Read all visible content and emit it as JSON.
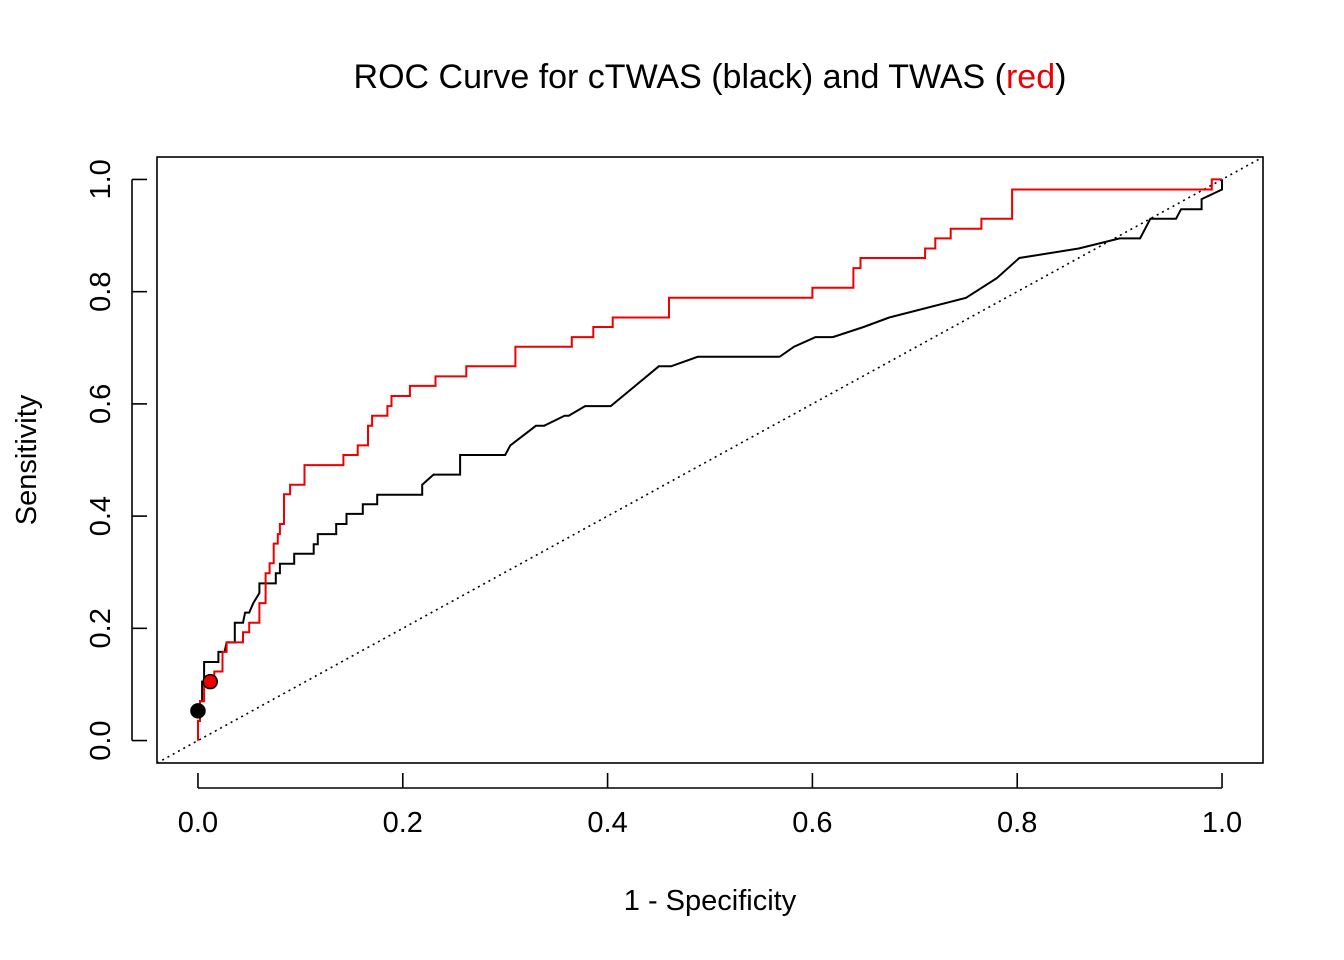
{
  "chart_data": {
    "type": "line",
    "title": {
      "prefix": "ROC Curve for cTWAS (black) and TWAS (",
      "highlight": "red",
      "suffix": ")",
      "highlight_color": "#ee0000"
    },
    "xlabel": "1 - Specificity",
    "ylabel": "Sensitivity",
    "xlim": [
      -0.04,
      1.04
    ],
    "ylim": [
      -0.04,
      1.04
    ],
    "xticks": [
      "0.0",
      "0.2",
      "0.4",
      "0.6",
      "0.8",
      "1.0"
    ],
    "yticks": [
      "0.0",
      "0.2",
      "0.4",
      "0.6",
      "0.8",
      "1.0"
    ],
    "reference_line": {
      "style": "dotted",
      "from": [
        0,
        0
      ],
      "to": [
        1,
        1
      ]
    },
    "grid": false,
    "series": [
      {
        "color": "#000000",
        "x": [
          0.0,
          0.0,
          0.002,
          0.002,
          0.004,
          0.004,
          0.006,
          0.006,
          0.02,
          0.02,
          0.026,
          0.028,
          0.036,
          0.036,
          0.044,
          0.046,
          0.05,
          0.054,
          0.06,
          0.06,
          0.076,
          0.076,
          0.08,
          0.08,
          0.094,
          0.094,
          0.113,
          0.113,
          0.117,
          0.117,
          0.135,
          0.135,
          0.145,
          0.145,
          0.161,
          0.161,
          0.175,
          0.175,
          0.193,
          0.2,
          0.219,
          0.219,
          0.23,
          0.25,
          0.256,
          0.256,
          0.272,
          0.3,
          0.305,
          0.33,
          0.338,
          0.358,
          0.362,
          0.378,
          0.386,
          0.403,
          0.427,
          0.45,
          0.462,
          0.488,
          0.546,
          0.568,
          0.582,
          0.603,
          0.62,
          0.65,
          0.675,
          0.75,
          0.78,
          0.802,
          0.86,
          0.9,
          0.92,
          0.93,
          0.955,
          0.96,
          0.98,
          0.98,
          1.0,
          1.0
        ],
        "y": [
          0.0,
          0.035,
          0.035,
          0.07,
          0.07,
          0.105,
          0.105,
          0.14,
          0.14,
          0.158,
          0.158,
          0.175,
          0.175,
          0.21,
          0.21,
          0.228,
          0.228,
          0.245,
          0.263,
          0.28,
          0.28,
          0.298,
          0.298,
          0.315,
          0.315,
          0.333,
          0.333,
          0.35,
          0.35,
          0.368,
          0.368,
          0.386,
          0.386,
          0.404,
          0.404,
          0.421,
          0.421,
          0.438,
          0.438,
          0.438,
          0.438,
          0.456,
          0.474,
          0.474,
          0.474,
          0.509,
          0.509,
          0.509,
          0.526,
          0.561,
          0.561,
          0.579,
          0.579,
          0.596,
          0.596,
          0.596,
          0.632,
          0.667,
          0.667,
          0.684,
          0.684,
          0.684,
          0.702,
          0.719,
          0.719,
          0.737,
          0.754,
          0.789,
          0.824,
          0.86,
          0.877,
          0.895,
          0.895,
          0.93,
          0.93,
          0.947,
          0.947,
          0.965,
          0.982,
          1.0
        ]
      },
      {
        "color": "#ee0000",
        "x": [
          0.0,
          0.0,
          0.002,
          0.002,
          0.006,
          0.006,
          0.016,
          0.016,
          0.024,
          0.024,
          0.028,
          0.028,
          0.044,
          0.044,
          0.05,
          0.05,
          0.06,
          0.06,
          0.066,
          0.066,
          0.07,
          0.07,
          0.074,
          0.074,
          0.078,
          0.078,
          0.08,
          0.08,
          0.084,
          0.084,
          0.09,
          0.09,
          0.104,
          0.104,
          0.142,
          0.142,
          0.156,
          0.156,
          0.166,
          0.166,
          0.17,
          0.17,
          0.185,
          0.185,
          0.189,
          0.189,
          0.207,
          0.207,
          0.232,
          0.232,
          0.262,
          0.262,
          0.31,
          0.31,
          0.365,
          0.365,
          0.386,
          0.386,
          0.405,
          0.405,
          0.46,
          0.46,
          0.6,
          0.6,
          0.64,
          0.64,
          0.647,
          0.647,
          0.71,
          0.71,
          0.72,
          0.72,
          0.735,
          0.735,
          0.765,
          0.765,
          0.795,
          0.795,
          0.99,
          0.99,
          1.0,
          1.0
        ],
        "y": [
          0.0,
          0.035,
          0.035,
          0.07,
          0.07,
          0.105,
          0.105,
          0.123,
          0.123,
          0.158,
          0.158,
          0.175,
          0.175,
          0.193,
          0.193,
          0.21,
          0.21,
          0.245,
          0.245,
          0.298,
          0.298,
          0.316,
          0.316,
          0.351,
          0.351,
          0.368,
          0.368,
          0.386,
          0.386,
          0.439,
          0.439,
          0.456,
          0.456,
          0.491,
          0.491,
          0.509,
          0.509,
          0.526,
          0.526,
          0.561,
          0.561,
          0.579,
          0.579,
          0.596,
          0.596,
          0.614,
          0.614,
          0.632,
          0.632,
          0.649,
          0.649,
          0.667,
          0.667,
          0.702,
          0.702,
          0.719,
          0.719,
          0.737,
          0.737,
          0.754,
          0.754,
          0.789,
          0.789,
          0.807,
          0.807,
          0.842,
          0.842,
          0.86,
          0.86,
          0.877,
          0.877,
          0.895,
          0.895,
          0.912,
          0.912,
          0.93,
          0.93,
          0.982,
          0.982,
          1.0,
          1.0,
          1.0
        ]
      }
    ],
    "points": [
      {
        "x": 0.0,
        "y": 0.053,
        "color": "#000000"
      },
      {
        "x": 0.012,
        "y": 0.105,
        "color": "#ee0000"
      }
    ]
  }
}
